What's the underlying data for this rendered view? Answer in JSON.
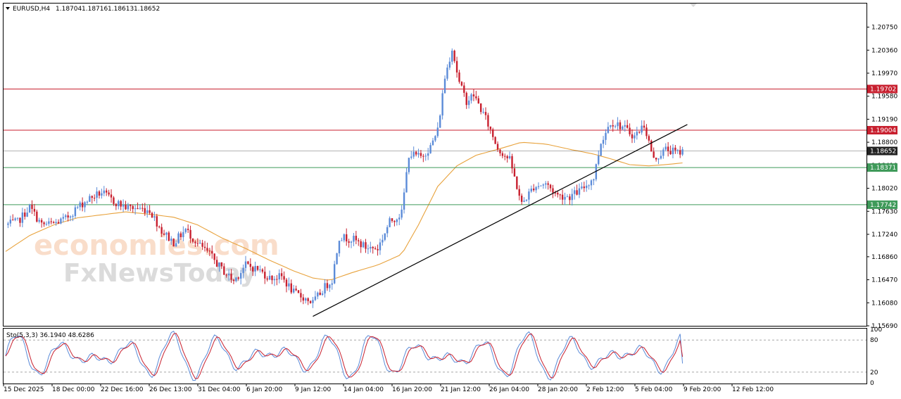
{
  "header": {
    "symbol": "EURUSD,H4",
    "open": "1.18704",
    "high": "1.18716",
    "low": "1.18613",
    "close": "1.18652"
  },
  "watermark": {
    "line1": "economies.com",
    "line2": "FxNewsToday"
  },
  "colors": {
    "bull": "#5b8bd8",
    "bear": "#c8202f",
    "ma": "#e8a23c",
    "resistance": "#c8202f",
    "support": "#3f9a5a",
    "current": "#222222",
    "trendline": "#000000",
    "stoch_main": "#5b8bd8",
    "stoch_signal": "#c8202f"
  },
  "chart_data": {
    "type": "candlestick",
    "symbol": "EURUSD",
    "timeframe": "H4",
    "ylim": [
      1.1569,
      1.2115
    ],
    "y_ticks": [
      "1.20750",
      "1.20360",
      "1.19970",
      "1.19580",
      "1.19190",
      "1.18800",
      "1.18410",
      "1.18020",
      "1.17630",
      "1.17240",
      "1.16860",
      "1.16470",
      "1.16080",
      "1.15690"
    ],
    "x_ticks": [
      "15 Dec 2025",
      "18 Dec 00:00",
      "22 Dec 16:00",
      "26 Dec 13:00",
      "31 Dec 04:00",
      "6 Jan 20:00",
      "9 Jan 12:00",
      "14 Jan 04:00",
      "16 Jan 20:00",
      "21 Jan 12:00",
      "26 Jan 04:00",
      "28 Jan 20:00",
      "2 Feb 12:00",
      "5 Feb 04:00",
      "9 Feb 20:00",
      "12 Feb 12:00"
    ],
    "x_tick_index": [
      0,
      16,
      32,
      48,
      64,
      80,
      96,
      112,
      128,
      144,
      160,
      176,
      192,
      208,
      224,
      240
    ],
    "bars_visible": 258,
    "close_path": [
      [
        0,
        1.174
      ],
      [
        5,
        1.1745
      ],
      [
        10,
        1.177
      ],
      [
        15,
        1.174
      ],
      [
        20,
        1.1742
      ],
      [
        25,
        1.175
      ],
      [
        30,
        1.177
      ],
      [
        35,
        1.1785
      ],
      [
        40,
        1.1795
      ],
      [
        45,
        1.178
      ],
      [
        50,
        1.177
      ],
      [
        55,
        1.1768
      ],
      [
        60,
        1.1765
      ],
      [
        65,
        1.173
      ],
      [
        70,
        1.171
      ],
      [
        75,
        1.1732
      ],
      [
        80,
        1.1708
      ],
      [
        85,
        1.169
      ],
      [
        90,
        1.1665
      ],
      [
        95,
        1.1645
      ],
      [
        100,
        1.1672
      ],
      [
        105,
        1.1665
      ],
      [
        110,
        1.165
      ],
      [
        115,
        1.1652
      ],
      [
        120,
        1.1625
      ],
      [
        125,
        1.1615
      ],
      [
        128,
        1.1608
      ],
      [
        133,
        1.1635
      ],
      [
        136,
        1.1647
      ],
      [
        139,
        1.172
      ],
      [
        145,
        1.1715
      ],
      [
        150,
        1.1702
      ],
      [
        155,
        1.17
      ],
      [
        160,
        1.1745
      ],
      [
        165,
        1.176
      ],
      [
        168,
        1.186
      ],
      [
        173,
        1.1855
      ],
      [
        177,
        1.1872
      ],
      [
        180,
        1.19
      ],
      [
        183,
        1.199
      ],
      [
        186,
        1.204
      ],
      [
        189,
        1.198
      ],
      [
        192,
        1.195
      ],
      [
        195,
        1.196
      ],
      [
        200,
        1.192
      ],
      [
        205,
        1.187
      ],
      [
        210,
        1.185
      ],
      [
        215,
        1.1775
      ],
      [
        220,
        1.1805
      ],
      [
        225,
        1.181
      ],
      [
        230,
        1.179
      ],
      [
        235,
        1.1788
      ],
      [
        240,
        1.18
      ],
      [
        245,
        1.182
      ],
      [
        248,
        1.188
      ],
      [
        252,
        1.1915
      ],
      [
        257,
        1.1906
      ],
      [
        262,
        1.189
      ],
      [
        266,
        1.191
      ],
      [
        270,
        1.185
      ],
      [
        275,
        1.1868
      ],
      [
        280,
        1.1862
      ],
      [
        282,
        1.1865
      ]
    ],
    "moving_average": [
      [
        0,
        1.1695
      ],
      [
        10,
        1.1722
      ],
      [
        20,
        1.174
      ],
      [
        30,
        1.1752
      ],
      [
        40,
        1.1757
      ],
      [
        50,
        1.1762
      ],
      [
        60,
        1.1758
      ],
      [
        70,
        1.1753
      ],
      [
        80,
        1.174
      ],
      [
        90,
        1.1718
      ],
      [
        100,
        1.17
      ],
      [
        110,
        1.168
      ],
      [
        120,
        1.1662
      ],
      [
        128,
        1.165
      ],
      [
        135,
        1.1646
      ],
      [
        145,
        1.166
      ],
      [
        155,
        1.1672
      ],
      [
        165,
        1.169
      ],
      [
        172,
        1.174
      ],
      [
        180,
        1.1805
      ],
      [
        188,
        1.184
      ],
      [
        196,
        1.1858
      ],
      [
        205,
        1.1868
      ],
      [
        215,
        1.188
      ],
      [
        225,
        1.1877
      ],
      [
        235,
        1.1868
      ],
      [
        245,
        1.186
      ],
      [
        252,
        1.1852
      ],
      [
        260,
        1.1842
      ],
      [
        268,
        1.184
      ],
      [
        275,
        1.1842
      ],
      [
        282,
        1.1845
      ]
    ],
    "levels": [
      {
        "name": "resistance-2",
        "value": 1.19702,
        "label": "1.19702",
        "color": "#c8202f"
      },
      {
        "name": "resistance-1",
        "value": 1.19004,
        "label": "1.19004",
        "color": "#c8202f"
      },
      {
        "name": "current-price",
        "value": 1.18652,
        "label": "1.18652",
        "color": "#222222"
      },
      {
        "name": "support-1",
        "value": 1.18371,
        "label": "1.18371",
        "color": "#3f9a5a"
      },
      {
        "name": "support-2",
        "value": 1.17742,
        "label": "1.17742",
        "color": "#3f9a5a"
      }
    ],
    "trendline": {
      "from": [
        128,
        1.1585
      ],
      "to": [
        284,
        1.191
      ]
    },
    "stochastic": {
      "label": "Sto(5,3,3) 36.1940 48.6286",
      "ylim": [
        0,
        100
      ],
      "y_ticks": [
        "100",
        "80",
        "20",
        "0"
      ],
      "levels": [
        80,
        20
      ],
      "main_last": 36.194,
      "signal_last": 48.6286
    }
  }
}
